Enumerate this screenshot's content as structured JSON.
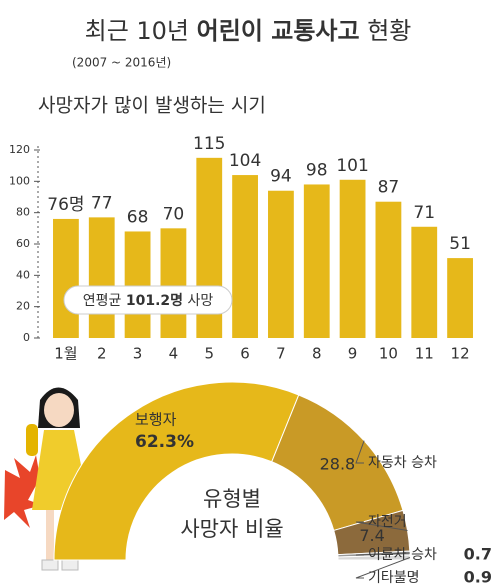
{
  "chart_data": [
    {
      "type": "bar",
      "title_parts": [
        "최근 10년 ",
        "어린이 교통사고",
        " 현황"
      ],
      "subtitle": "(2007 ~ 2016년)",
      "chart_title": "사망자가 많이 발생하는 시기",
      "categories": [
        "1월",
        "2",
        "3",
        "4",
        "5",
        "6",
        "7",
        "8",
        "9",
        "10",
        "11",
        "12"
      ],
      "values": [
        76,
        77,
        68,
        70,
        115,
        104,
        94,
        98,
        101,
        87,
        71,
        51
      ],
      "value_labels": [
        "76명",
        "77",
        "68",
        "70",
        "115",
        "104",
        "94",
        "98",
        "101",
        "87",
        "71",
        "51"
      ],
      "color": "#e6b81a",
      "ylim": [
        0,
        120
      ],
      "yticks": [
        0,
        20,
        40,
        60,
        80,
        100,
        120
      ],
      "annotation_parts": [
        "연평균 ",
        "101.2명",
        " 사망"
      ]
    },
    {
      "type": "donut",
      "center_label": [
        "유형별",
        "사망자 비율"
      ],
      "categories": [
        "보행자",
        "자동차 승차",
        "자전거",
        "이륜차 승차",
        "기타불명"
      ],
      "values": [
        62.3,
        28.8,
        7.4,
        0.7,
        0.9
      ],
      "value_labels": [
        "62.3%",
        "28.8",
        "7.4",
        "0.7",
        "0.9"
      ],
      "colors": [
        "#e6b81a",
        "#c99a26",
        "#8c6a3c",
        "#9a9a9a",
        "#d8d8d8"
      ]
    }
  ]
}
